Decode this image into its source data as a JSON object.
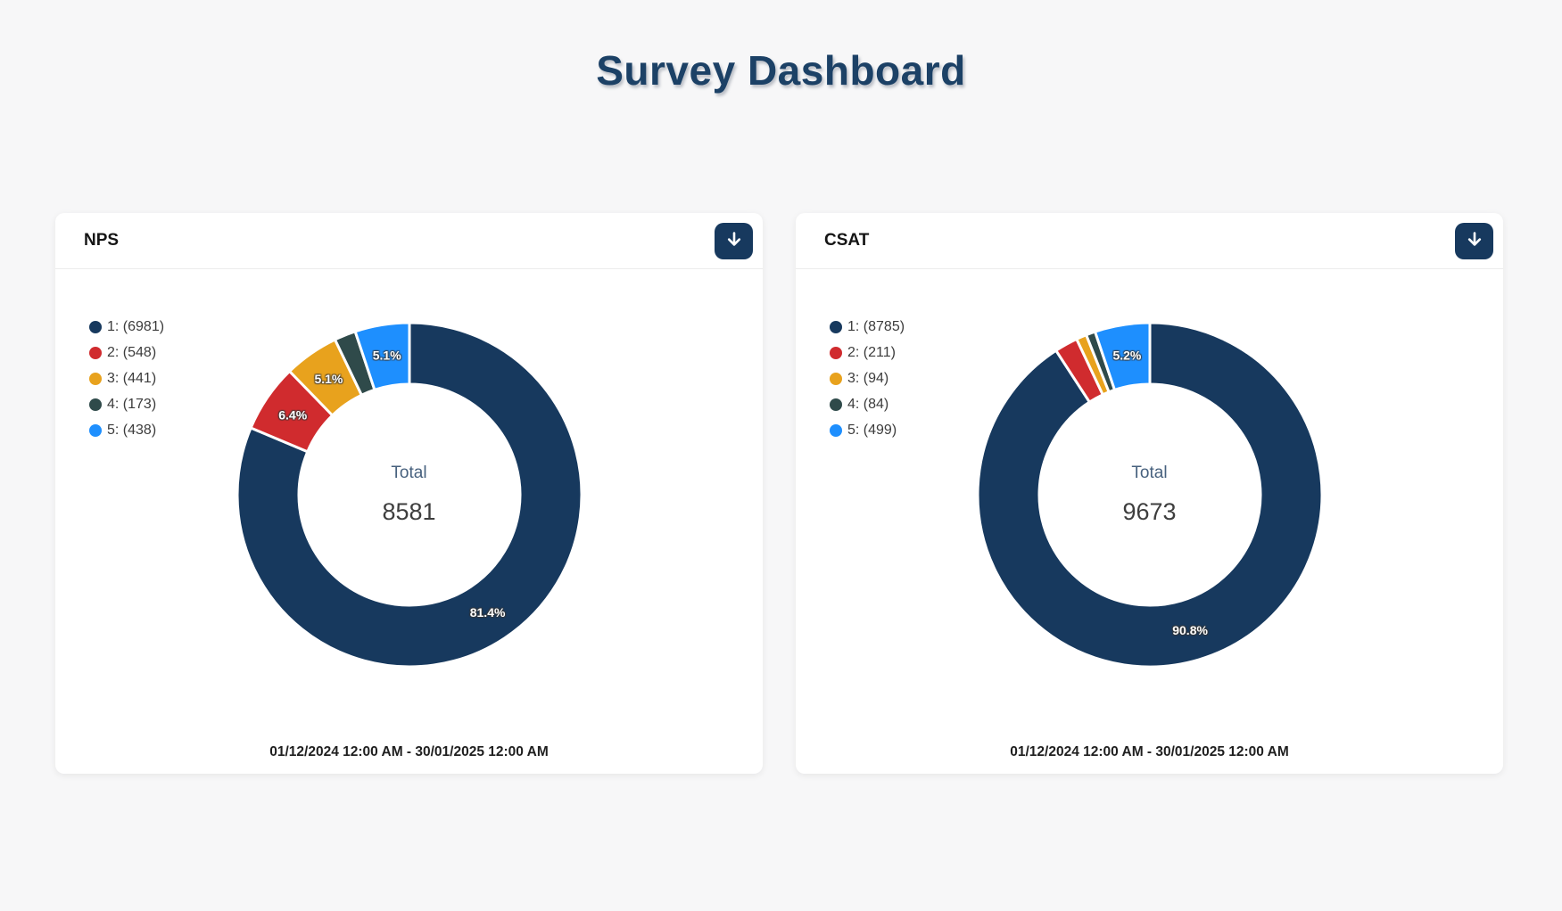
{
  "page": {
    "title": "Survey Dashboard"
  },
  "colors": {
    "background": "#f7f7f8",
    "title": "#1c4166",
    "accent_navy": "#17395e",
    "card_background": "#ffffff",
    "series": [
      "#17395e",
      "#d02b2e",
      "#e8a21d",
      "#2f4a4a",
      "#1e8ffe"
    ]
  },
  "cards": [
    {
      "title": "NPS",
      "download_icon": "down-arrow-icon",
      "center_label": "Total",
      "center_value": "8581",
      "date_range": "01/12/2024 12:00 AM - 30/01/2025 12:00 AM"
    },
    {
      "title": "CSAT",
      "download_icon": "down-arrow-icon",
      "center_label": "Total",
      "center_value": "9673",
      "date_range": "01/12/2024 12:00 AM - 30/01/2025 12:00 AM"
    }
  ],
  "chart_data": [
    {
      "type": "pie",
      "subtype": "doughnut",
      "title": "NPS",
      "categories": [
        "1",
        "2",
        "3",
        "4",
        "5"
      ],
      "values": [
        6981,
        548,
        441,
        173,
        438
      ],
      "colors": [
        "#17395e",
        "#d02b2e",
        "#e8a21d",
        "#2f4a4a",
        "#1e8ffe"
      ],
      "total": 8581,
      "center_label": "Total",
      "percent_labels": [
        "81.4%",
        "6.4%",
        "5.1%",
        null,
        "5.1%"
      ],
      "legend_labels": [
        "1: (6981)",
        "2: (548)",
        "3: (441)",
        "4: (173)",
        "5: (438)"
      ],
      "legend_position": "left",
      "start_angle_deg": 0,
      "direction": "clockwise"
    },
    {
      "type": "pie",
      "subtype": "doughnut",
      "title": "CSAT",
      "categories": [
        "1",
        "2",
        "3",
        "4",
        "5"
      ],
      "values": [
        8785,
        211,
        94,
        84,
        499
      ],
      "colors": [
        "#17395e",
        "#d02b2e",
        "#e8a21d",
        "#2f4a4a",
        "#1e8ffe"
      ],
      "total": 9673,
      "center_label": "Total",
      "percent_labels": [
        "90.8%",
        null,
        null,
        null,
        "5.2%"
      ],
      "legend_labels": [
        "1: (8785)",
        "2: (211)",
        "3: (94)",
        "4: (84)",
        "5: (499)"
      ],
      "legend_position": "left",
      "start_angle_deg": 0,
      "direction": "clockwise"
    }
  ]
}
